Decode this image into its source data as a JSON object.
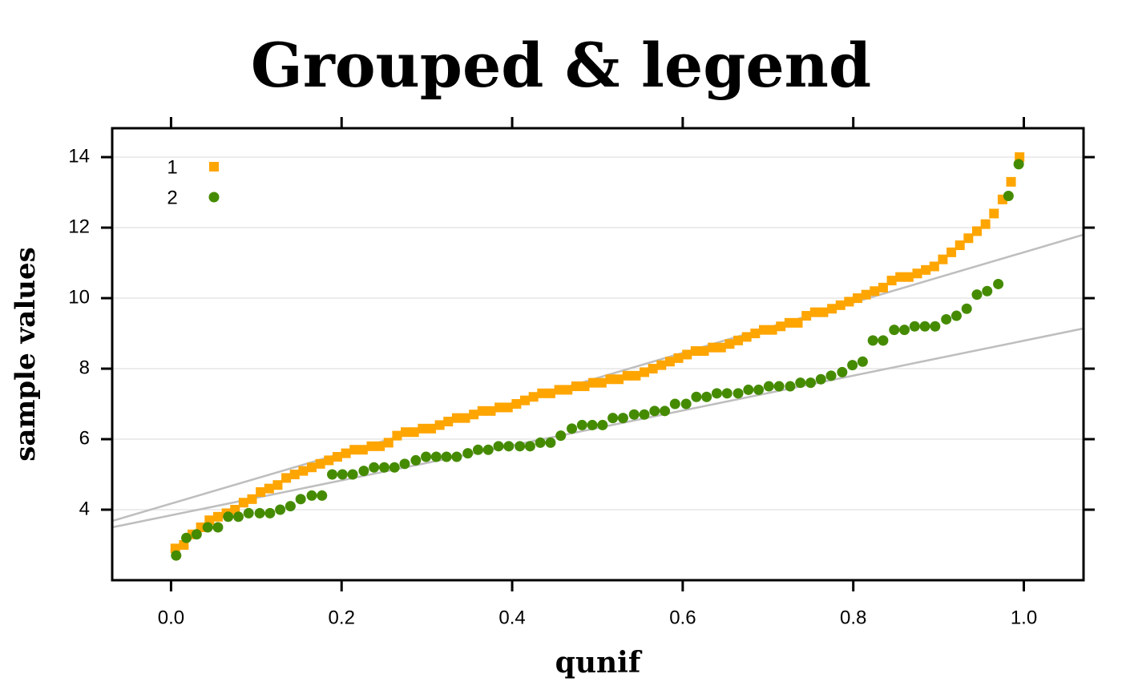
{
  "chart_data": {
    "type": "scatter",
    "title": "Grouped & legend",
    "xlabel": "qunif",
    "ylabel": "sample values",
    "xlim": [
      -0.069,
      1.07
    ],
    "ylim": [
      2.0,
      14.82
    ],
    "xticks": [
      {
        "value": 0,
        "label": "0.0"
      },
      0.2,
      0.4,
      0.6,
      0.8,
      {
        "value": 1,
        "label": "1.0"
      }
    ],
    "yticks": [
      4,
      6,
      8,
      10,
      12,
      14
    ],
    "grid": true,
    "legend": "top-left",
    "series": [
      {
        "name": "1",
        "color": "#FFA500",
        "marker": "square",
        "x": [
          0.005,
          0.015,
          0.025,
          0.035,
          0.045,
          0.055,
          0.065,
          0.075,
          0.085,
          0.095,
          0.105,
          0.115,
          0.125,
          0.135,
          0.145,
          0.155,
          0.165,
          0.175,
          0.185,
          0.195,
          0.205,
          0.215,
          0.225,
          0.235,
          0.245,
          0.255,
          0.265,
          0.275,
          0.285,
          0.295,
          0.305,
          0.315,
          0.325,
          0.335,
          0.345,
          0.355,
          0.365,
          0.375,
          0.385,
          0.395,
          0.405,
          0.415,
          0.425,
          0.435,
          0.445,
          0.455,
          0.465,
          0.475,
          0.485,
          0.495,
          0.505,
          0.515,
          0.525,
          0.535,
          0.545,
          0.555,
          0.565,
          0.575,
          0.585,
          0.595,
          0.605,
          0.615,
          0.625,
          0.635,
          0.645,
          0.655,
          0.665,
          0.675,
          0.685,
          0.695,
          0.705,
          0.715,
          0.725,
          0.735,
          0.745,
          0.755,
          0.765,
          0.775,
          0.785,
          0.795,
          0.805,
          0.815,
          0.825,
          0.835,
          0.845,
          0.855,
          0.865,
          0.875,
          0.885,
          0.895,
          0.905,
          0.915,
          0.925,
          0.935,
          0.945,
          0.955,
          0.965,
          0.975,
          0.985,
          0.995
        ],
        "values": [
          2.9,
          3.0,
          3.3,
          3.5,
          3.7,
          3.8,
          3.9,
          4.0,
          4.2,
          4.3,
          4.5,
          4.6,
          4.7,
          4.9,
          5.0,
          5.1,
          5.2,
          5.3,
          5.4,
          5.5,
          5.6,
          5.7,
          5.7,
          5.8,
          5.8,
          5.9,
          6.1,
          6.2,
          6.2,
          6.3,
          6.3,
          6.4,
          6.5,
          6.6,
          6.6,
          6.7,
          6.8,
          6.8,
          6.9,
          6.9,
          7.0,
          7.1,
          7.2,
          7.3,
          7.3,
          7.4,
          7.4,
          7.5,
          7.5,
          7.6,
          7.6,
          7.7,
          7.7,
          7.8,
          7.8,
          7.9,
          8.0,
          8.1,
          8.2,
          8.3,
          8.4,
          8.5,
          8.5,
          8.6,
          8.6,
          8.7,
          8.8,
          8.9,
          9.0,
          9.1,
          9.1,
          9.2,
          9.3,
          9.3,
          9.5,
          9.6,
          9.6,
          9.7,
          9.8,
          9.9,
          10.0,
          10.1,
          10.2,
          10.3,
          10.5,
          10.6,
          10.6,
          10.7,
          10.8,
          10.9,
          11.1,
          11.3,
          11.5,
          11.7,
          11.9,
          12.1,
          12.4,
          12.8,
          13.3,
          14.0
        ]
      },
      {
        "name": "2",
        "color": "#458B00",
        "marker": "circle",
        "x": [
          0.006,
          0.018,
          0.03,
          0.043,
          0.055,
          0.067,
          0.079,
          0.091,
          0.104,
          0.116,
          0.128,
          0.14,
          0.152,
          0.165,
          0.177,
          0.189,
          0.201,
          0.213,
          0.226,
          0.238,
          0.25,
          0.262,
          0.274,
          0.287,
          0.299,
          0.311,
          0.323,
          0.335,
          0.348,
          0.36,
          0.372,
          0.384,
          0.396,
          0.409,
          0.421,
          0.433,
          0.445,
          0.457,
          0.47,
          0.482,
          0.494,
          0.506,
          0.518,
          0.53,
          0.543,
          0.555,
          0.567,
          0.579,
          0.591,
          0.604,
          0.616,
          0.628,
          0.64,
          0.652,
          0.665,
          0.677,
          0.689,
          0.701,
          0.713,
          0.726,
          0.738,
          0.75,
          0.762,
          0.774,
          0.787,
          0.799,
          0.811,
          0.823,
          0.835,
          0.848,
          0.86,
          0.872,
          0.884,
          0.896,
          0.909,
          0.921,
          0.933,
          0.945,
          0.957,
          0.97,
          0.982,
          0.994
        ],
        "values": [
          2.7,
          3.2,
          3.3,
          3.5,
          3.5,
          3.8,
          3.8,
          3.9,
          3.9,
          3.9,
          4.0,
          4.1,
          4.3,
          4.4,
          4.4,
          5.0,
          5.0,
          5.0,
          5.1,
          5.2,
          5.2,
          5.2,
          5.3,
          5.4,
          5.5,
          5.5,
          5.5,
          5.5,
          5.6,
          5.7,
          5.7,
          5.8,
          5.8,
          5.8,
          5.8,
          5.9,
          5.9,
          6.1,
          6.3,
          6.4,
          6.4,
          6.4,
          6.6,
          6.6,
          6.7,
          6.7,
          6.8,
          6.8,
          7.0,
          7.0,
          7.2,
          7.2,
          7.3,
          7.3,
          7.3,
          7.4,
          7.4,
          7.5,
          7.5,
          7.5,
          7.6,
          7.6,
          7.7,
          7.8,
          7.9,
          8.1,
          8.2,
          8.8,
          8.8,
          9.1,
          9.1,
          9.2,
          9.2,
          9.2,
          9.4,
          9.5,
          9.7,
          10.1,
          10.2,
          10.4,
          12.9,
          13.8
        ]
      }
    ],
    "reference_lines": [
      {
        "color": "#BEBEBE",
        "x": [
          -0.069,
          1.07
        ],
        "y": [
          3.68,
          11.8
        ]
      },
      {
        "color": "#BEBEBE",
        "x": [
          -0.069,
          1.07
        ],
        "y": [
          3.5,
          9.14
        ]
      }
    ]
  }
}
